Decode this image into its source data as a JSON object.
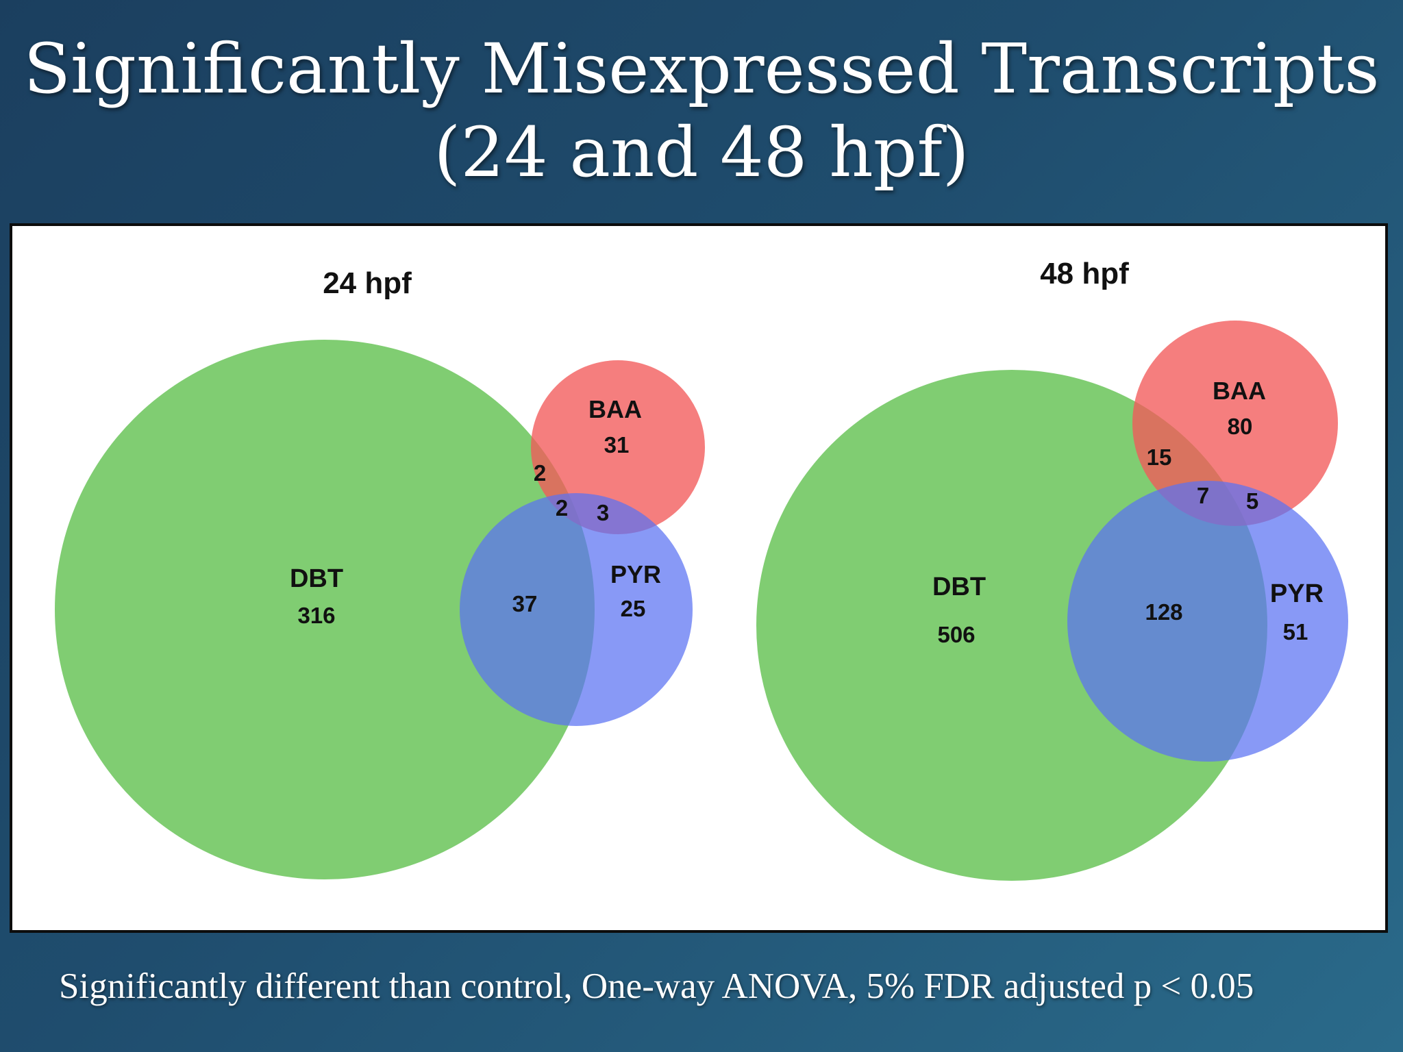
{
  "slide": {
    "title_line1": "Significantly Misexpressed Transcripts",
    "title_line2": "(24 and 48 hpf)",
    "footnote": "Significantly different than control, One-way ANOVA, 5% FDR adjusted p < 0.05"
  },
  "diagrams": [
    {
      "title": "24 hpf",
      "sets": [
        {
          "name": "DBT",
          "color": "#5cbf4a"
        },
        {
          "name": "BAA",
          "color": "#f25a5a"
        },
        {
          "name": "PYR",
          "color": "#5a72f2"
        }
      ],
      "regions": {
        "DBT_only": "316",
        "BAA_only": "31",
        "PYR_only": "25",
        "DBT_BAA": "2",
        "DBT_PYR": "37",
        "BAA_PYR": "3",
        "DBT_BAA_PYR": "2"
      }
    },
    {
      "title": "48 hpf",
      "sets": [
        {
          "name": "DBT",
          "color": "#5cbf4a"
        },
        {
          "name": "BAA",
          "color": "#f25a5a"
        },
        {
          "name": "PYR",
          "color": "#5a72f2"
        }
      ],
      "regions": {
        "DBT_only": "506",
        "BAA_only": "80",
        "PYR_only": "51",
        "DBT_BAA": "15",
        "DBT_PYR": "128",
        "BAA_PYR": "5",
        "DBT_BAA_PYR": "7"
      }
    }
  ]
}
